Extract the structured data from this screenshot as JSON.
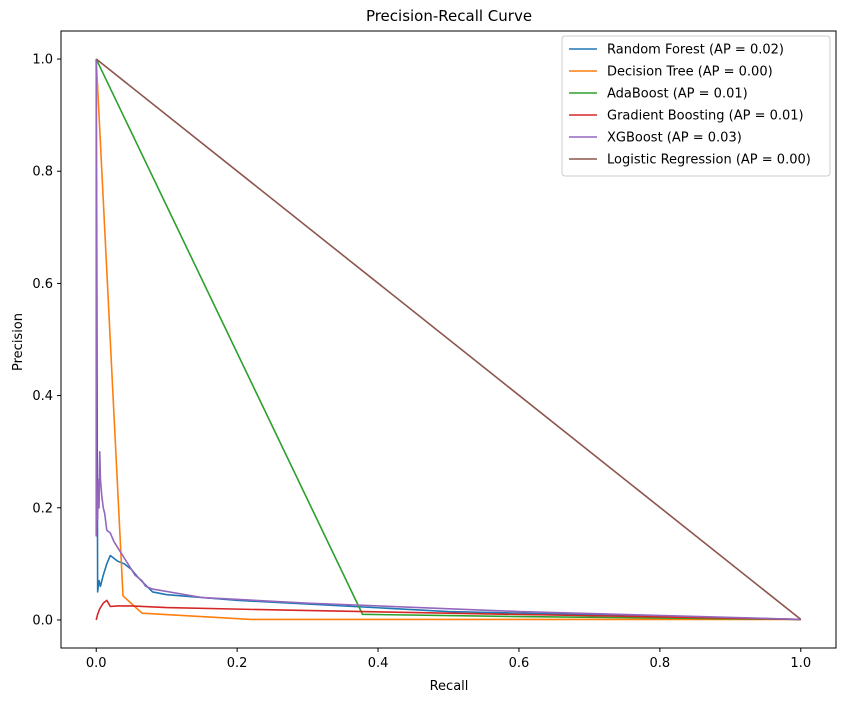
{
  "chart_data": {
    "type": "line",
    "title": "Precision-Recall Curve",
    "xlabel": "Recall",
    "ylabel": "Precision",
    "xlim": [
      -0.05,
      1.05
    ],
    "ylim": [
      -0.05,
      1.05
    ],
    "xticks": [
      0.0,
      0.2,
      0.4,
      0.6,
      0.8,
      1.0
    ],
    "yticks": [
      0.0,
      0.2,
      0.4,
      0.6,
      0.8,
      1.0
    ],
    "xtick_labels": [
      "0.0",
      "0.2",
      "0.4",
      "0.6",
      "0.8",
      "1.0"
    ],
    "ytick_labels": [
      "0.0",
      "0.2",
      "0.4",
      "0.6",
      "0.8",
      "1.0"
    ],
    "grid": false,
    "legend_position": "top-right",
    "series": [
      {
        "name": "Random Forest (AP = 0.02)",
        "color": "#1f77b4",
        "x": [
          1.0,
          0.5,
          0.2,
          0.1,
          0.08,
          0.06,
          0.05,
          0.04,
          0.03,
          0.025,
          0.02,
          0.015,
          0.01,
          0.008,
          0.006,
          0.004,
          0.002,
          0.0
        ],
        "y": [
          0.001,
          0.015,
          0.035,
          0.045,
          0.05,
          0.075,
          0.09,
          0.1,
          0.105,
          0.11,
          0.115,
          0.1,
          0.08,
          0.07,
          0.06,
          0.07,
          0.05,
          1.0
        ]
      },
      {
        "name": "Decision Tree (AP = 0.00)",
        "color": "#ff7f0e",
        "x": [
          1.0,
          0.6,
          0.22,
          0.065,
          0.038,
          0.0,
          0.0
        ],
        "y": [
          0.001,
          0.001,
          0.001,
          0.012,
          0.043,
          1.0,
          1.0
        ]
      },
      {
        "name": "AdaBoost (AP = 0.01)",
        "color": "#2ca02c",
        "x": [
          1.0,
          0.6,
          0.378,
          0.0
        ],
        "y": [
          0.001,
          0.006,
          0.01,
          1.0
        ]
      },
      {
        "name": "Gradient Boosting (AP = 0.01)",
        "color": "#d62728",
        "x": [
          1.0,
          0.5,
          0.25,
          0.1,
          0.05,
          0.03,
          0.02,
          0.015,
          0.01,
          0.005,
          0.002,
          0.0
        ],
        "y": [
          0.001,
          0.012,
          0.018,
          0.022,
          0.025,
          0.025,
          0.024,
          0.035,
          0.03,
          0.02,
          0.01,
          0.0
        ]
      },
      {
        "name": "XGBoost (AP = 0.03)",
        "color": "#9467bd",
        "x": [
          1.0,
          0.6,
          0.3,
          0.15,
          0.08,
          0.07,
          0.065,
          0.055,
          0.045,
          0.04,
          0.035,
          0.03,
          0.025,
          0.02,
          0.015,
          0.012,
          0.01,
          0.008,
          0.006,
          0.005,
          0.004,
          0.003,
          0.002,
          0.001,
          0.0,
          0.0
        ],
        "y": [
          0.001,
          0.015,
          0.03,
          0.04,
          0.055,
          0.06,
          0.07,
          0.08,
          0.1,
          0.11,
          0.12,
          0.13,
          0.14,
          0.155,
          0.16,
          0.19,
          0.2,
          0.22,
          0.25,
          0.3,
          0.2,
          0.25,
          0.18,
          0.22,
          0.15,
          1.0
        ]
      },
      {
        "name": "Logistic Regression (AP = 0.00)",
        "color": "#8c564b",
        "x": [
          1.0,
          0.0
        ],
        "y": [
          0.001,
          1.0
        ]
      }
    ]
  }
}
